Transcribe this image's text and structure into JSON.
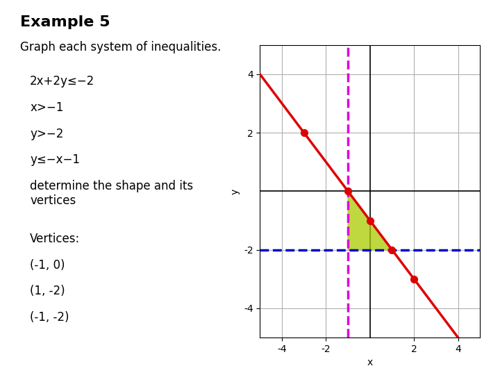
{
  "chart_data": {
    "type": "line",
    "title": "Example 5",
    "subtitle": "Graph each system of inequalities.",
    "xlabel": "x",
    "ylabel": "y",
    "xlim": [
      -5,
      5
    ],
    "ylim": [
      -5,
      5
    ],
    "xticks": [
      -4,
      -2,
      2,
      4
    ],
    "yticks": [
      -4,
      -2,
      2,
      4
    ],
    "grid": true,
    "annotations": [
      "2x+2y≤−2",
      "x>−1",
      "y>−2",
      "y≤−x−1",
      "determine the shape and its\nvertices",
      "Vertices:",
      "(-1, 0)",
      "(1, -2)",
      "(-1, -2)"
    ],
    "series": [
      {
        "type": "area",
        "color": "#aacc00",
        "x": [
          -1,
          1,
          -1
        ],
        "values": [
          0,
          -2,
          -2
        ]
      },
      {
        "type": "line",
        "color": "#dd0000",
        "line_style": "solid",
        "x": [
          -5,
          4
        ],
        "values": [
          4,
          -5
        ]
      },
      {
        "type": "line",
        "color": "#dd00dd",
        "line_style": "dashed",
        "x": [
          -1,
          -1
        ],
        "values": [
          -5,
          5
        ]
      },
      {
        "type": "line",
        "color": "#0000cc",
        "line_style": "dashed",
        "x": [
          -5,
          5
        ],
        "values": [
          -2,
          -2
        ]
      },
      {
        "type": "scatter",
        "color": "#dd0000",
        "x": [
          -1,
          0,
          1,
          -3,
          2
        ],
        "values": [
          0,
          -1,
          -2,
          2,
          -3
        ]
      }
    ]
  }
}
